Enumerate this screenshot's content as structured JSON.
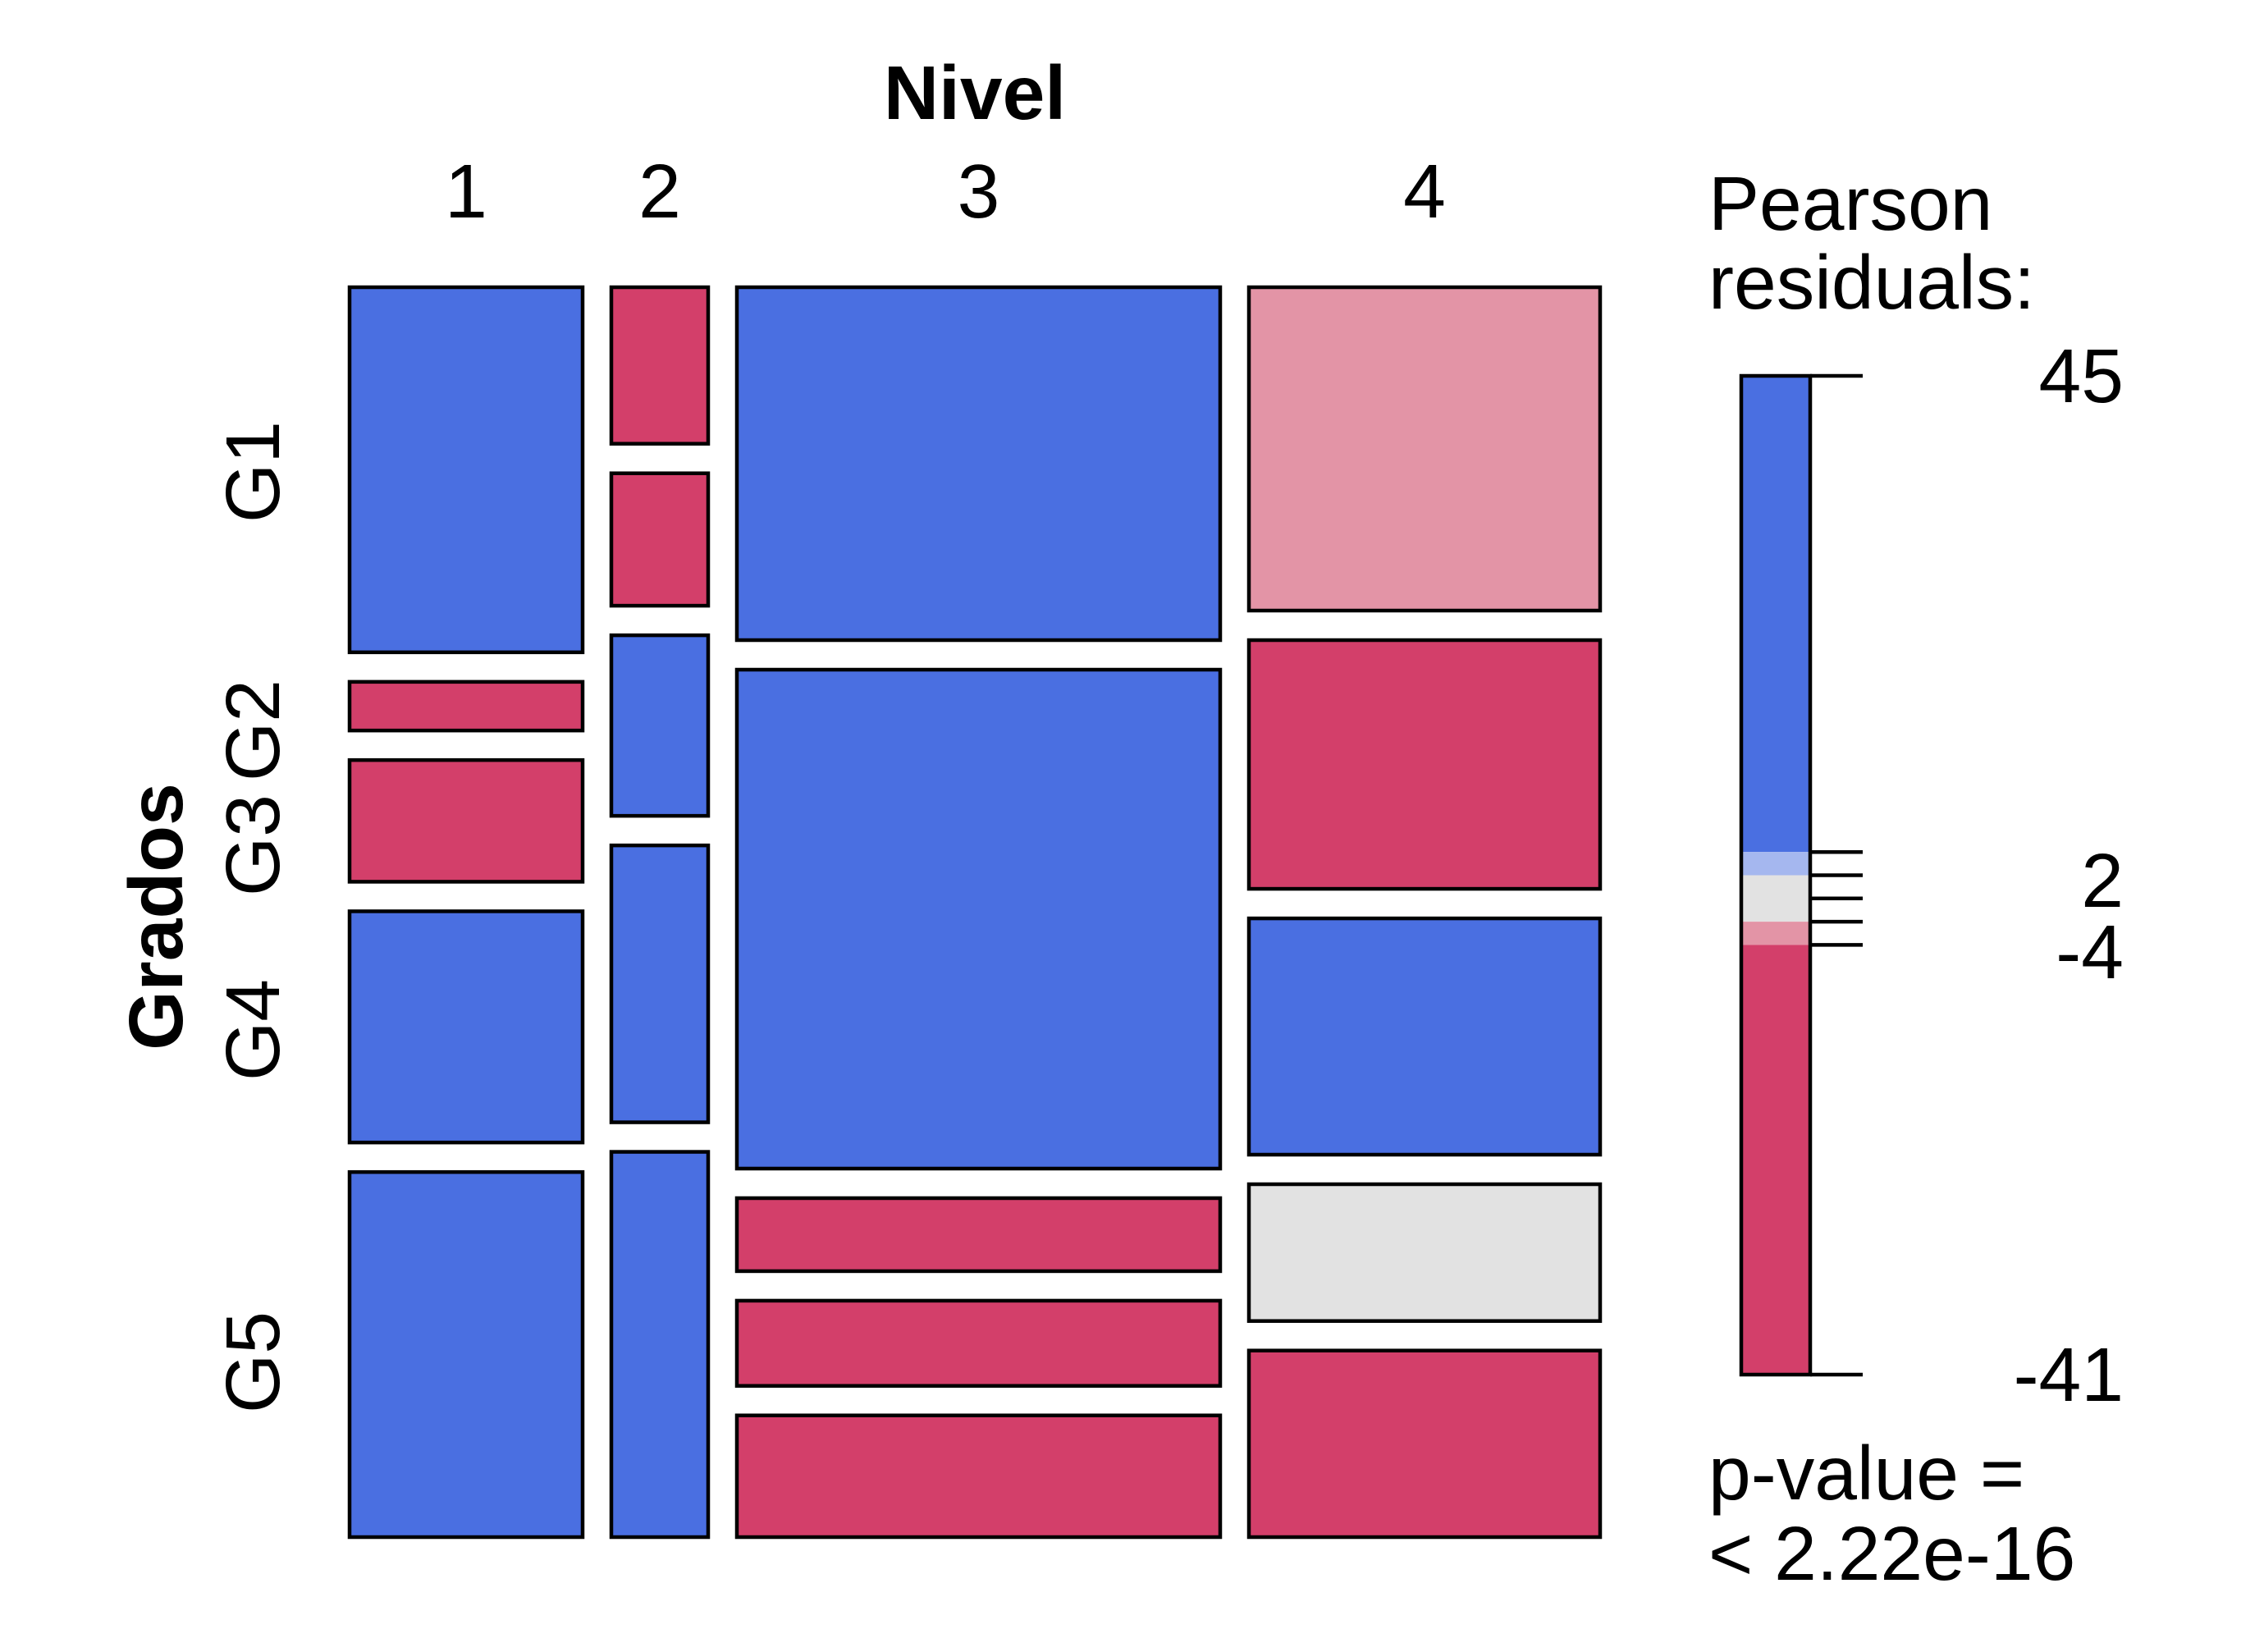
{
  "chart_data": {
    "type": "mosaic",
    "xlabel": "Nivel",
    "ylabel": "Grados",
    "x_categories": [
      "1",
      "2",
      "3",
      "4"
    ],
    "y_categories": [
      "G1",
      "G2",
      "G3",
      "G4",
      "G5"
    ],
    "tiles": [
      {
        "x": "1",
        "y": "G1",
        "share": 0.3,
        "shading": "blue"
      },
      {
        "x": "1",
        "y": "G2",
        "share": 0.04,
        "shading": "red"
      },
      {
        "x": "1",
        "y": "G3",
        "share": 0.1,
        "shading": "red"
      },
      {
        "x": "1",
        "y": "G4",
        "share": 0.19,
        "shading": "blue"
      },
      {
        "x": "1",
        "y": "G5",
        "share": 0.3,
        "shading": "blue"
      },
      {
        "x": "2",
        "y": "G1",
        "share": 0.13,
        "shading": "red"
      },
      {
        "x": "2",
        "y": "G2",
        "share": 0.11,
        "shading": "red"
      },
      {
        "x": "2",
        "y": "G3",
        "share": 0.15,
        "shading": "blue"
      },
      {
        "x": "2",
        "y": "G4",
        "share": 0.23,
        "shading": "blue"
      },
      {
        "x": "2",
        "y": "G5",
        "share": 0.32,
        "shading": "blue"
      },
      {
        "x": "3",
        "y": "G1",
        "share": 0.29,
        "shading": "blue"
      },
      {
        "x": "3",
        "y": "G2",
        "share": 0.41,
        "shading": "blue"
      },
      {
        "x": "3",
        "y": "G3",
        "share": 0.06,
        "shading": "red"
      },
      {
        "x": "3",
        "y": "G4",
        "share": 0.07,
        "shading": "red"
      },
      {
        "x": "3",
        "y": "G5",
        "share": 0.1,
        "shading": "red"
      },
      {
        "x": "4",
        "y": "G1",
        "share": 0.26,
        "shading": "light-red"
      },
      {
        "x": "4",
        "y": "G2",
        "share": 0.2,
        "shading": "red"
      },
      {
        "x": "4",
        "y": "G3",
        "share": 0.19,
        "shading": "blue"
      },
      {
        "x": "4",
        "y": "G4",
        "share": 0.11,
        "shading": "grey"
      },
      {
        "x": "4",
        "y": "G5",
        "share": 0.15,
        "shading": "red"
      }
    ],
    "legend": {
      "title_line1": "Pearson",
      "title_line2": "residuals:",
      "max": 45,
      "min": -41,
      "breaks": [
        -4,
        -2,
        0,
        2,
        4
      ],
      "tick_labels": [
        "45",
        "2",
        "-4",
        "-41"
      ],
      "p_value_line1": "p-value =",
      "p_value_line2": "< 2.22e-16"
    },
    "colors": {
      "blue": "#4a6fe1",
      "light-blue": "#a5b7ef",
      "grey": "#e2e2e2",
      "light-red": "#e394a6",
      "red": "#d33f6a"
    }
  }
}
